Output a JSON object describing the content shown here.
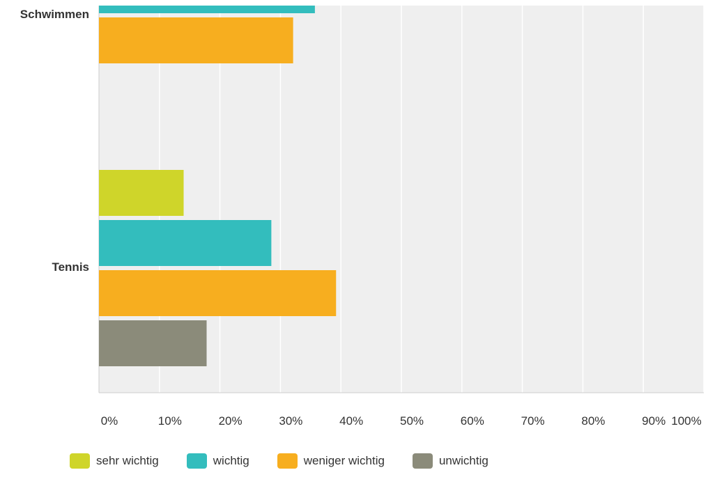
{
  "chart_data": {
    "type": "bar",
    "orientation": "horizontal",
    "categories": [
      "Schwimmen",
      "Tennis"
    ],
    "series": [
      {
        "name": "sehr wichtig",
        "color": "#cfd52a",
        "values": [
          null,
          14
        ]
      },
      {
        "name": "wichtig",
        "color": "#33bdbd",
        "values": [
          35.7,
          28.5
        ]
      },
      {
        "name": "weniger wichtig",
        "color": "#f7ae1f",
        "values": [
          32.1,
          39.2
        ]
      },
      {
        "name": "unwichtig",
        "color": "#8b8b7a",
        "values": [
          null,
          17.8
        ]
      }
    ],
    "xlim": [
      0,
      100
    ],
    "x_ticks": [
      "0%",
      "10%",
      "20%",
      "30%",
      "40%",
      "50%",
      "60%",
      "70%",
      "80%",
      "90%",
      "100%"
    ],
    "grid": true,
    "legend_position": "bottom"
  }
}
